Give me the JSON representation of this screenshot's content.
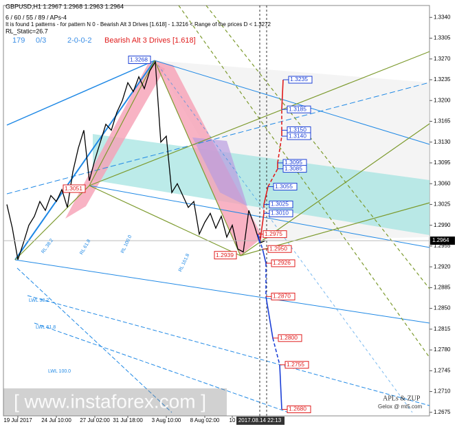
{
  "chart_data": {
    "type": "line",
    "symbol_line": "GBPUSD,H1  1.2967 1.2968 1.2963 1.2964",
    "settings_line": "6 / 60 / 55 / 89 / APs-4",
    "pattern_line": "It is found 1 patterns  -  for pattern N 0 - Bearish Alt 3 Drives [1.618] - 1.3216 < Range of the prices D < 1.3272",
    "static_line": "RL_Static=26.7",
    "counters": [
      "179",
      "0/3",
      "2-0-0-2"
    ],
    "pattern_name": "Bearish Alt 3 Drives [1.618]",
    "watermark": "[ www.instaforex.com ]",
    "credit_1": "APLs & ZUP",
    "credit_2": "Gelox @ mt5.com",
    "categories": [
      null,
      null,
      "19 Jul 2017",
      null,
      null,
      null,
      null,
      null,
      null,
      "24 Jul 10:00",
      null,
      null,
      null,
      null,
      null,
      null,
      "27 Jul 02:00",
      null,
      null,
      null,
      null,
      null,
      "31 Jul 18:00",
      null,
      null,
      null,
      null,
      null,
      null,
      "3 Aug 10:00",
      null,
      null,
      null,
      null,
      null,
      null,
      "8 Aug 02:00",
      null,
      null,
      null,
      null,
      "10",
      null,
      null,
      null,
      null,
      "2017.08.14 22:13",
      null
    ],
    "series": [
      {
        "name": "GBPUSD",
        "color": "#000000",
        "values": [
          1.3025,
          1.2985,
          1.2932,
          1.296,
          1.299,
          1.3005,
          1.303,
          1.3015,
          1.304,
          1.303,
          1.305,
          1.302,
          1.308,
          1.312,
          1.315,
          1.3065,
          1.31,
          1.313,
          1.316,
          1.315,
          1.318,
          1.32,
          1.323,
          1.3215,
          1.324,
          1.322,
          1.325,
          1.3265,
          1.313,
          1.314,
          1.3045,
          1.306,
          1.304,
          1.302,
          1.303,
          1.2975,
          1.2995,
          1.301,
          1.2985,
          1.3005,
          1.297,
          1.299,
          1.295,
          1.2945,
          1.3015,
          1.299,
          1.296,
          1.2964
        ]
      }
    ],
    "ylim": [
      1.2669,
      1.336
    ],
    "yticks": [
      {
        "value": 1.334,
        "label": "1.3340"
      },
      1.3305,
      {
        "value": 1.327,
        "label": "1.3270"
      },
      1.3235,
      {
        "value": 1.32,
        "label": "1.3200"
      },
      1.3165,
      {
        "value": 1.313,
        "label": "1.3130"
      },
      1.3095,
      {
        "value": 1.306,
        "label": "1.3060"
      },
      1.3025,
      {
        "value": 1.299,
        "label": "1.2990"
      },
      1.2955,
      {
        "value": 1.292,
        "label": "1.2920"
      },
      1.2885,
      {
        "value": 1.285,
        "label": "1.2850"
      },
      1.2815,
      {
        "value": 1.278,
        "label": "1.2780"
      },
      1.2745,
      {
        "value": 1.271,
        "label": "1.2710"
      },
      1.2675
    ],
    "levels": [
      {
        "value": 1.3235,
        "label": "1.3235",
        "color": "#1b3fd6"
      },
      {
        "value": 1.3185,
        "label": "1.3185",
        "color": "#1b3fd6"
      },
      {
        "value": 1.315,
        "label": "1.3150",
        "color": "#1b3fd6"
      },
      {
        "value": 1.314,
        "label": "1.3140",
        "color": "#1b3fd6"
      },
      {
        "value": 1.3095,
        "label": "1.3095",
        "color": "#1b3fd6"
      },
      {
        "value": 1.3085,
        "label": "1.3085",
        "color": "#1b3fd6"
      },
      {
        "value": 1.3055,
        "label": "1.3055",
        "color": "#1b3fd6"
      },
      {
        "value": 1.3025,
        "label": "1.3025",
        "color": "#1b3fd6"
      },
      {
        "value": 1.301,
        "label": "1.3010",
        "color": "#1b3fd6"
      },
      {
        "value": 1.2975,
        "label": "1.2975",
        "color": "#e01b1b"
      },
      {
        "value": 1.295,
        "label": "1.2950",
        "color": "#e01b1b"
      },
      {
        "value": 1.2926,
        "label": "1.2926",
        "color": "#e01b1b"
      },
      {
        "value": 1.287,
        "label": "1.2870",
        "color": "#e01b1b"
      },
      {
        "value": 1.28,
        "label": "1.2800",
        "color": "#e01b1b"
      },
      {
        "value": 1.2755,
        "label": "1.2755",
        "color": "#e01b1b"
      },
      {
        "value": 1.268,
        "label": "1.2680",
        "color": "#e01b1b"
      }
    ],
    "pivots": [
      {
        "value": 1.3268,
        "label": "1.3268",
        "color": "#1b3fd6"
      },
      {
        "value": 1.3051,
        "label": "1.3051",
        "color": "#e01b1b"
      },
      {
        "value": 1.2939,
        "label": "1.2939",
        "color": "#e01b1b"
      }
    ],
    "current_price": 1.2964,
    "line_labels": [
      "LWL 38.2",
      "LWL 61.8",
      "LWL 100.0",
      "RL 38.2",
      "RL 61.8",
      "RL 100.0",
      "RL 161.8"
    ]
  }
}
